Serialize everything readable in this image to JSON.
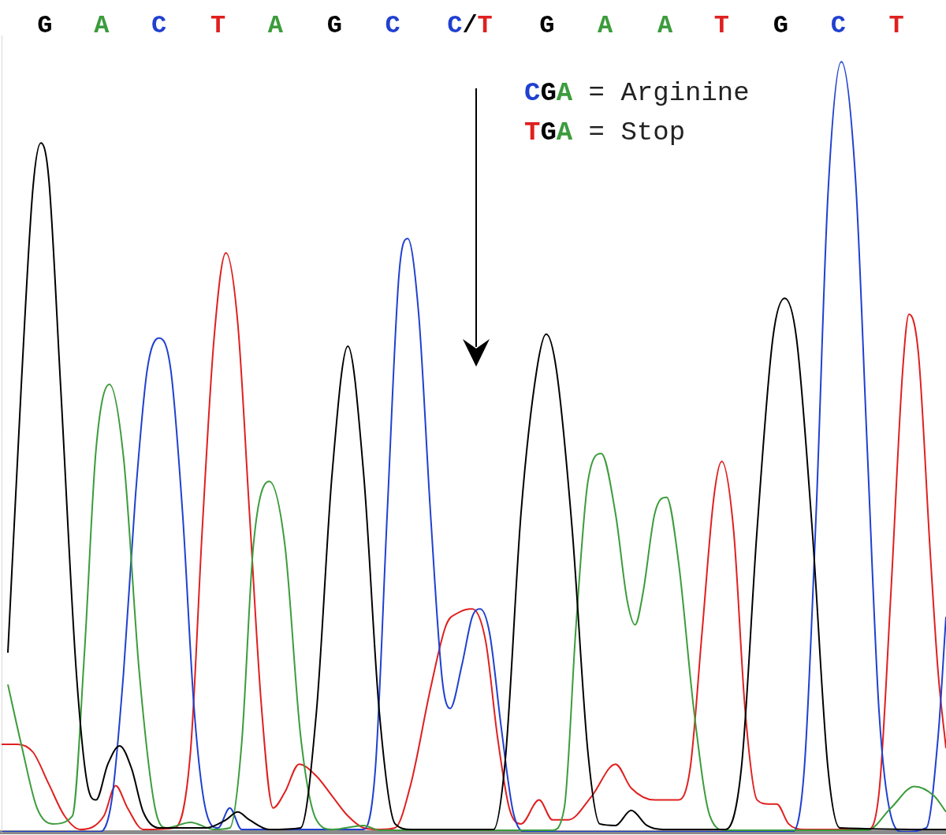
{
  "chart_data": {
    "type": "line",
    "xlim": [
      0,
      1200
    ],
    "ylim": [
      0,
      1000
    ],
    "grid": false,
    "tick_labels": false,
    "base_calls": {
      "labels": [
        "G",
        "A",
        "C",
        "T",
        "A",
        "G",
        "C",
        "C/T",
        "G",
        "A",
        "A",
        "T",
        "G",
        "C",
        "T"
      ],
      "x": [
        55,
        127,
        200,
        275,
        348,
        423,
        497,
        595,
        693,
        767,
        843,
        915,
        990,
        1063,
        1137
      ]
    },
    "annotations": [
      "CGA = Arginine",
      "TGA = Stop"
    ],
    "series": [
      {
        "name": "G",
        "color": "#000000",
        "x": [
          8,
          25,
          40,
          50,
          60,
          75,
          95,
          110,
          120,
          135,
          150,
          165,
          180,
          200,
          260,
          285,
          300,
          315,
          340,
          380,
          400,
          420,
          440,
          460,
          480,
          500,
          520,
          625,
          640,
          660,
          680,
          692,
          705,
          725,
          745,
          760,
          780,
          800,
          820,
          840,
          920,
          940,
          960,
          980,
          995,
          1010,
          1030,
          1050,
          1065,
          1200
        ],
        "values": [
          225,
          560,
          810,
          865,
          820,
          560,
          200,
          55,
          40,
          85,
          108,
          80,
          25,
          5,
          5,
          15,
          25,
          15,
          3,
          5,
          150,
          450,
          610,
          450,
          150,
          10,
          3,
          3,
          90,
          400,
          580,
          625,
          580,
          380,
          100,
          10,
          8,
          27,
          8,
          3,
          3,
          80,
          380,
          620,
          670,
          620,
          380,
          80,
          5,
          3
        ]
      },
      {
        "name": "A",
        "color": "#3c9c3c",
        "x": [
          8,
          25,
          45,
          65,
          90,
          105,
          120,
          137,
          155,
          175,
          195,
          210,
          240,
          270,
          290,
          305,
          320,
          340,
          360,
          380,
          400,
          420,
          460,
          480,
          700,
          715,
          730,
          745,
          762,
          780,
          795,
          805,
          815,
          830,
          845,
          860,
          880,
          900,
          920,
          1100,
          1130,
          1160,
          1185,
          1200
        ],
        "values": [
          185,
          110,
          30,
          10,
          20,
          220,
          480,
          562,
          470,
          200,
          30,
          5,
          12,
          3,
          5,
          110,
          360,
          440,
          360,
          120,
          15,
          3,
          8,
          2,
          2,
          30,
          260,
          440,
          475,
          400,
          290,
          260,
          300,
          400,
          420,
          340,
          150,
          20,
          2,
          2,
          30,
          57,
          45,
          25
        ]
      },
      {
        "name": "C",
        "color": "#2040d0",
        "x": [
          0,
          125,
          140,
          155,
          170,
          185,
          200,
          215,
          230,
          245,
          260,
          275,
          290,
          305,
          460,
          475,
          490,
          505,
          516,
          530,
          545,
          560,
          570,
          585,
          598,
          608,
          620,
          635,
          650,
          665,
          1005,
          1020,
          1035,
          1050,
          1067,
          1085,
          1100,
          1115,
          1130,
          1145,
          1175,
          1190,
          1200
        ],
        "values": [
          0,
          0,
          40,
          200,
          420,
          580,
          620,
          580,
          400,
          150,
          25,
          5,
          30,
          3,
          3,
          80,
          400,
          700,
          745,
          650,
          400,
          190,
          155,
          210,
          270,
          280,
          250,
          130,
          25,
          0,
          0,
          80,
          400,
          800,
          967,
          820,
          480,
          150,
          20,
          0,
          5,
          120,
          270
        ]
      },
      {
        "name": "T",
        "color": "#e02020",
        "x": [
          0,
          20,
          40,
          60,
          80,
          100,
          130,
          145,
          160,
          180,
          220,
          240,
          255,
          270,
          285,
          300,
          315,
          330,
          345,
          360,
          378,
          400,
          420,
          440,
          460,
          480,
          500,
          520,
          545,
          565,
          580,
          598,
          615,
          630,
          645,
          660,
          683,
          700,
          720,
          750,
          780,
          800,
          830,
          860,
          875,
          890,
          905,
          915,
          930,
          945,
          960,
          975,
          985,
          1000,
          1020,
          1100,
          1115,
          1130,
          1145,
          1153,
          1165,
          1180,
          1190,
          1200
        ],
        "values": [
          110,
          110,
          100,
          60,
          20,
          3,
          20,
          58,
          30,
          3,
          5,
          100,
          380,
          620,
          727,
          640,
          400,
          160,
          30,
          50,
          85,
          70,
          45,
          20,
          5,
          3,
          5,
          60,
          180,
          260,
          275,
          280,
          240,
          120,
          30,
          10,
          40,
          15,
          15,
          45,
          85,
          55,
          40,
          40,
          80,
          250,
          420,
          465,
          380,
          150,
          40,
          35,
          35,
          10,
          3,
          3,
          50,
          300,
          580,
          650,
          600,
          350,
          200,
          105
        ]
      }
    ]
  }
}
